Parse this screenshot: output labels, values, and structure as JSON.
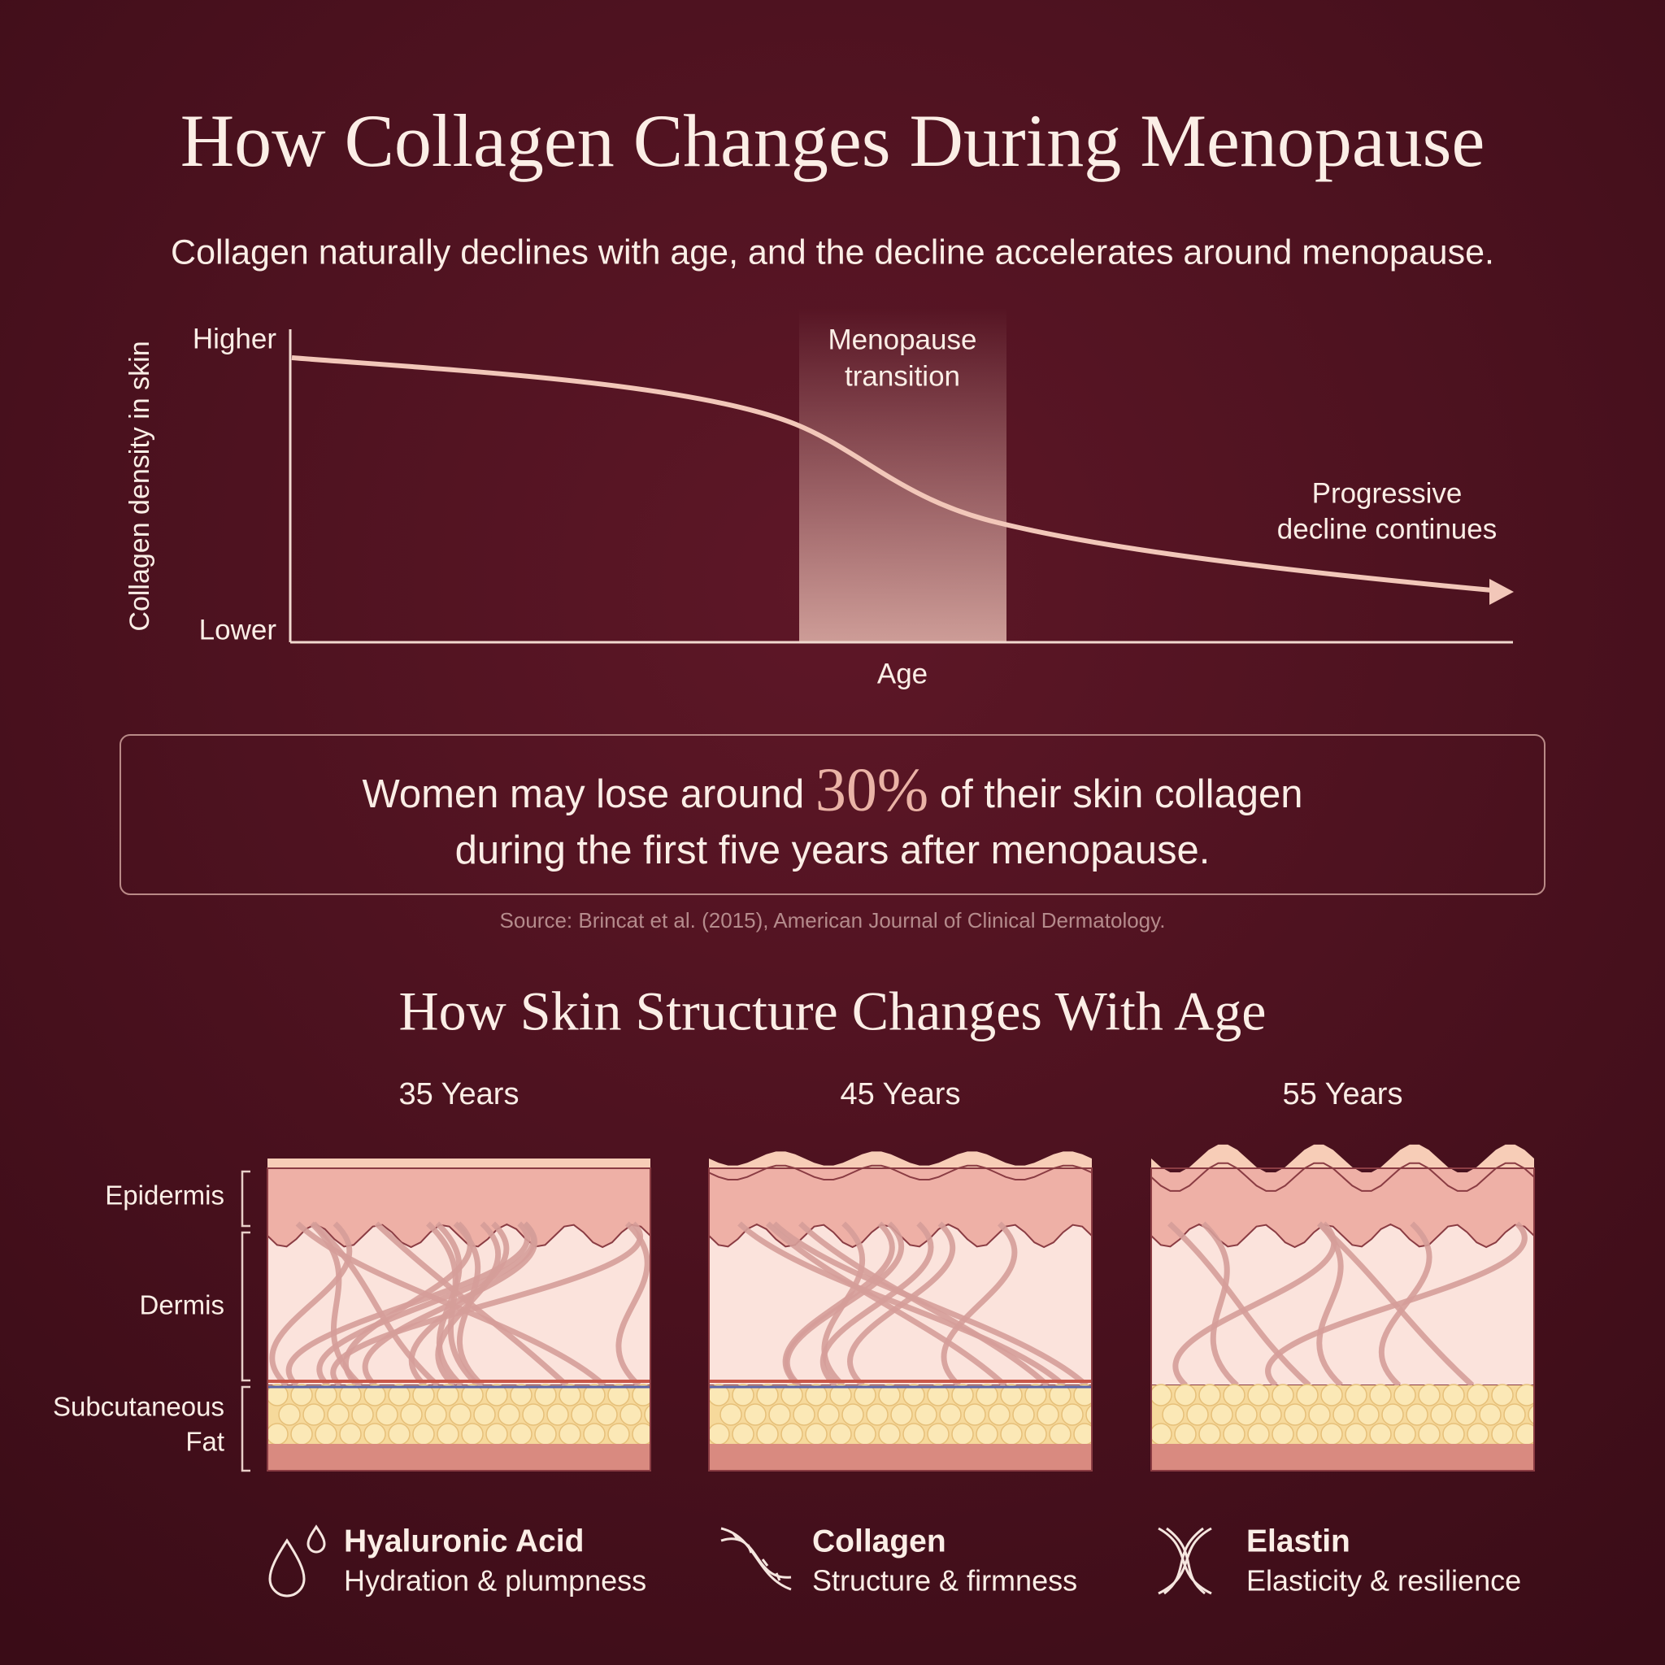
{
  "header": {
    "title": "How Collagen Changes During Menopause",
    "subtitle": "Collagen naturally declines with age, and the decline accelerates around menopause."
  },
  "curve_chart": {
    "y_axis_label": "Collagen density in skin",
    "y_high": "Higher",
    "y_low": "Lower",
    "x_axis_label": "Age",
    "band_label": [
      "Menopause",
      "transition"
    ],
    "end_label": [
      "Progressive",
      "decline continues"
    ]
  },
  "highlight": {
    "before": "Women may lose around",
    "stat": "30%",
    "after": "of their skin collagen",
    "line2": "during the first five years after menopause.",
    "source": "Source: Brincat et al. (2015), American Journal of Clinical Dermatology."
  },
  "skin": {
    "title": "How Skin Structure Changes With Age",
    "layers": [
      "Epidermis",
      "Dermis"
    ],
    "fat_label": [
      "Subcutaneous",
      "Fat"
    ],
    "panels": [
      "35 Years",
      "45 Years",
      "55 Years"
    ]
  },
  "legend": [
    {
      "title": "Hyaluronic Acid",
      "text": "Hydration & plumpness"
    },
    {
      "title": "Collagen",
      "text": "Structure & firmness"
    },
    {
      "title": "Elastin",
      "text": "Elasticity & resilience"
    }
  ]
}
